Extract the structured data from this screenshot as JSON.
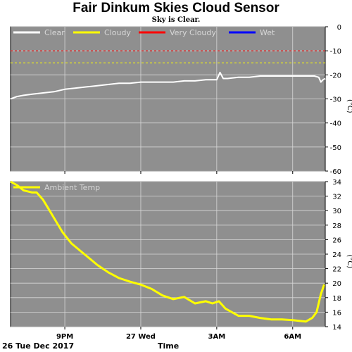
{
  "title": "Fair Dinkum Skies Cloud Sensor",
  "subtitle": "Sky is Clear.",
  "footer": {
    "date_label": "26 Tue Dec 2017",
    "time_axis_label": "Time"
  },
  "colors": {
    "background": "#ffffff",
    "plot_bg": "#8f8f8f",
    "grid": "#d8d8d8",
    "clear": "#ffffff",
    "cloudy": "#ffff00",
    "very_cloudy": "#ff0000",
    "wet": "#0000ff"
  },
  "chart_data": [
    {
      "type": "line",
      "ylabel": "(°C)",
      "ylim": [
        -60,
        0
      ],
      "yticks": [
        0,
        -10,
        -20,
        -30,
        -40,
        -50,
        -60
      ],
      "xlim": [
        0,
        14.5
      ],
      "xticks": [
        2.5,
        6,
        9.5,
        13
      ],
      "grid": true,
      "legend": [
        {
          "name": "Clear",
          "color": "#ffffff"
        },
        {
          "name": "Cloudy",
          "color": "#ffff00"
        },
        {
          "name": "Very Cloudy",
          "color": "#ff0000"
        },
        {
          "name": "Wet",
          "color": "#0000ff"
        }
      ],
      "legend_placement": "top-left",
      "thresholds": [
        {
          "name": "Very Cloudy",
          "value": -10,
          "color": "#ff0000"
        },
        {
          "name": "Cloudy",
          "value": -15,
          "color": "#ffff00"
        }
      ],
      "series": [
        {
          "name": "Clear",
          "color": "#ffffff",
          "x": [
            0,
            0.3,
            0.6,
            1,
            1.5,
            2,
            2.5,
            3,
            3.5,
            4,
            4.5,
            5,
            5.5,
            6,
            6.5,
            7,
            7.5,
            8,
            8.5,
            9,
            9.5,
            9.65,
            9.8,
            10,
            10.5,
            11,
            11.5,
            12,
            12.5,
            13,
            13.5,
            14,
            14.2,
            14.3,
            14.4,
            14.5
          ],
          "y": [
            -30,
            -29,
            -28.5,
            -28,
            -27.5,
            -27,
            -26,
            -25.5,
            -25,
            -24.5,
            -24,
            -23.5,
            -23.5,
            -23,
            -23,
            -23,
            -23,
            -22.5,
            -22.5,
            -22,
            -22,
            -19,
            -21.5,
            -21.5,
            -21,
            -21,
            -20.5,
            -20.5,
            -20.5,
            -20.5,
            -20.5,
            -20.5,
            -21,
            -23,
            -22,
            -21.5
          ]
        }
      ]
    },
    {
      "type": "line",
      "ylabel": "(°C)",
      "ylim": [
        14,
        34
      ],
      "yticks": [
        34,
        32,
        30,
        28,
        26,
        24,
        22,
        20,
        18,
        16,
        14
      ],
      "xlim": [
        0,
        14.5
      ],
      "xticks": [
        2.5,
        6,
        9.5,
        13
      ],
      "xticklabels": [
        "9PM",
        "27 Wed",
        "3AM",
        "6AM"
      ],
      "grid": true,
      "legend": [
        {
          "name": "Ambient Temp",
          "color": "#ffff00"
        }
      ],
      "legend_placement": "top-left",
      "series": [
        {
          "name": "Ambient Temp",
          "color": "#ffff00",
          "x": [
            0,
            0.3,
            0.6,
            1.0,
            1.2,
            1.5,
            1.8,
            2.1,
            2.4,
            2.8,
            3.2,
            3.6,
            4.0,
            4.5,
            5.0,
            5.5,
            6.0,
            6.5,
            7.0,
            7.5,
            8.0,
            8.5,
            9.0,
            9.3,
            9.6,
            9.9,
            10.2,
            10.5,
            11,
            11.5,
            12,
            12.5,
            13,
            13.3,
            13.6,
            13.9,
            14.1,
            14.3,
            14.45
          ],
          "y": [
            34,
            33.5,
            32.8,
            32.5,
            32.5,
            31.5,
            30,
            28.5,
            27,
            25.5,
            24.5,
            23.5,
            22.5,
            21.5,
            20.7,
            20.2,
            19.8,
            19.2,
            18.3,
            17.8,
            18.1,
            17.2,
            17.5,
            17.2,
            17.5,
            16.5,
            16,
            15.5,
            15.5,
            15.2,
            15,
            15,
            14.9,
            14.8,
            14.7,
            15.2,
            16,
            18.5,
            19.8
          ]
        }
      ]
    }
  ]
}
